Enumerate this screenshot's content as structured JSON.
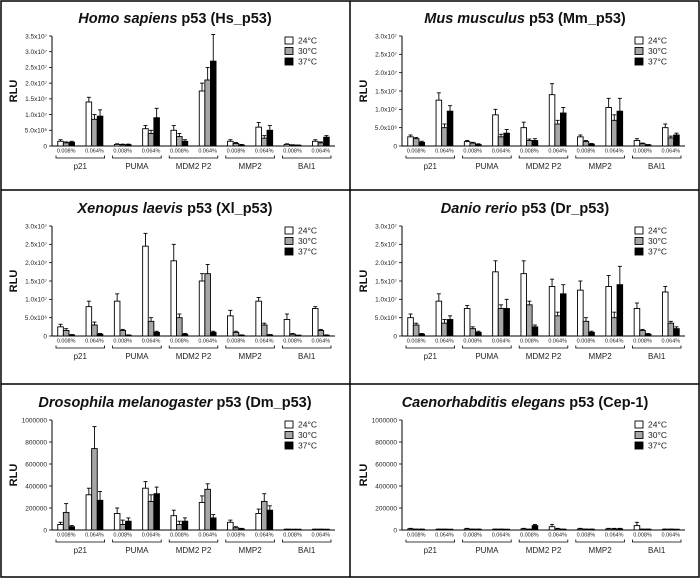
{
  "colors": {
    "24C": "#ffffff",
    "30C": "#a6a6a6",
    "37C": "#000000",
    "stroke": "#000000",
    "border": "#000000"
  },
  "chart_data": [
    {
      "type": "bar",
      "title_species": "Homo sapiens",
      "title_rest": " p53 (Hs_p53)",
      "ylabel": "RLU",
      "yticks": [
        "0",
        "5.0x10⁶",
        "1.0x10⁷",
        "1.5x10⁷",
        "2.0x10⁷",
        "2.5x10⁷",
        "3.0x10⁷",
        "3.5x10⁷"
      ],
      "ylim": [
        0,
        35000000
      ],
      "genes": [
        "p21",
        "PUMA",
        "MDM2 P2",
        "MMP2",
        "BAI1"
      ],
      "concentrations": [
        "0.008%",
        "0.064%"
      ],
      "series": [
        {
          "name": "24°C",
          "values": [
            1500000,
            14000000,
            500000,
            5500000,
            5000000,
            17500000,
            1500000,
            6000000,
            500000,
            1500000
          ],
          "errors": [
            500000,
            1500000,
            200000,
            1000000,
            1500000,
            2500000,
            500000,
            1500000,
            200000,
            500000
          ]
        },
        {
          "name": "30°C",
          "values": [
            1000000,
            8500000,
            400000,
            4000000,
            3000000,
            21000000,
            800000,
            2500000,
            300000,
            1000000
          ],
          "errors": [
            300000,
            1500000,
            200000,
            1000000,
            1000000,
            4000000,
            300000,
            800000,
            100000,
            300000
          ]
        },
        {
          "name": "37°C",
          "values": [
            1200000,
            9500000,
            400000,
            9000000,
            1500000,
            27000000,
            300000,
            5000000,
            200000,
            2800000
          ],
          "errors": [
            300000,
            2000000,
            200000,
            3000000,
            500000,
            8500000,
            200000,
            1500000,
            100000,
            500000
          ]
        }
      ]
    },
    {
      "type": "bar",
      "title_species": "Mus musculus",
      "title_rest": " p53 (Mm_p53)",
      "ylabel": "RLU",
      "yticks": [
        "0",
        "5.0x10⁶",
        "1.0x10⁷",
        "1.5x10⁷",
        "2.0x10⁷",
        "2.5x10⁷",
        "3.0x10⁷"
      ],
      "ylim": [
        0,
        30000000
      ],
      "genes": [
        "p21",
        "PUMA",
        "MDM2 P2",
        "MMP2",
        "BAI1"
      ],
      "concentrations": [
        "0.008%",
        "0.064%"
      ],
      "series": [
        {
          "name": "24°C",
          "values": [
            2500000,
            12500000,
            1200000,
            8500000,
            5000000,
            14000000,
            2500000,
            10500000,
            1500000,
            5000000
          ],
          "errors": [
            500000,
            2000000,
            300000,
            1500000,
            1500000,
            3000000,
            500000,
            2500000,
            500000,
            1000000
          ]
        },
        {
          "name": "30°C",
          "values": [
            2000000,
            5000000,
            800000,
            2500000,
            1500000,
            6000000,
            1200000,
            7000000,
            600000,
            2200000
          ],
          "errors": [
            300000,
            1000000,
            200000,
            700000,
            400000,
            1000000,
            300000,
            1500000,
            200000,
            500000
          ]
        },
        {
          "name": "37°C",
          "values": [
            1000000,
            9500000,
            400000,
            3500000,
            1500000,
            9000000,
            500000,
            9500000,
            300000,
            3000000
          ],
          "errors": [
            300000,
            1500000,
            200000,
            1000000,
            500000,
            1500000,
            200000,
            3500000,
            100000,
            500000
          ]
        }
      ]
    },
    {
      "type": "bar",
      "title_species": "Xenopus laevis",
      "title_rest": " p53 (Xl_p53)",
      "ylabel": "RLU",
      "yticks": [
        "0",
        "5.0x10⁶",
        "1.0x10⁷",
        "1.5x10⁷",
        "2.0x10⁷",
        "2.5x10⁷",
        "3.0x10⁷"
      ],
      "ylim": [
        0,
        30000000
      ],
      "genes": [
        "p21",
        "PUMA",
        "MDM2 P2",
        "MMP2",
        "BAI1"
      ],
      "concentrations": [
        "0.008%",
        "0.064%"
      ],
      "series": [
        {
          "name": "24°C",
          "values": [
            2500000,
            8000000,
            9500000,
            24500000,
            20500000,
            15000000,
            5500000,
            9500000,
            4500000,
            7500000
          ],
          "errors": [
            700000,
            1500000,
            2000000,
            3500000,
            4500000,
            2000000,
            1500000,
            1000000,
            1500000,
            500000
          ]
        },
        {
          "name": "30°C",
          "values": [
            1500000,
            3000000,
            1500000,
            4000000,
            5000000,
            17000000,
            1000000,
            3000000,
            500000,
            1500000
          ],
          "errors": [
            500000,
            800000,
            300000,
            1000000,
            1000000,
            2500000,
            300000,
            500000,
            200000,
            300000
          ]
        },
        {
          "name": "37°C",
          "values": [
            300000,
            500000,
            200000,
            1000000,
            500000,
            1000000,
            200000,
            300000,
            100000,
            200000
          ],
          "errors": [
            100000,
            200000,
            100000,
            300000,
            200000,
            300000,
            100000,
            100000,
            100000,
            100000
          ]
        }
      ]
    },
    {
      "type": "bar",
      "title_species": "Danio rerio",
      "title_rest": " p53 (Dr_p53)",
      "ylabel": "RLU",
      "yticks": [
        "0",
        "5.0x10⁶",
        "1.0x10⁷",
        "1.5x10⁷",
        "2.0x10⁷",
        "2.5x10⁷",
        "3.0x10⁷"
      ],
      "ylim": [
        0,
        30000000
      ],
      "genes": [
        "p21",
        "PUMA",
        "MDM2 P2",
        "MMP2",
        "BAI1"
      ],
      "concentrations": [
        "0.008%",
        "0.064%"
      ],
      "series": [
        {
          "name": "24°C",
          "values": [
            5000000,
            9500000,
            7500000,
            17500000,
            17000000,
            13500000,
            12500000,
            13500000,
            7500000,
            12000000
          ],
          "errors": [
            1000000,
            2000000,
            800000,
            3000000,
            3500000,
            2000000,
            2500000,
            3000000,
            1500000,
            1500000
          ]
        },
        {
          "name": "30°C",
          "values": [
            3000000,
            3500000,
            2000000,
            7500000,
            8500000,
            5500000,
            4000000,
            5000000,
            1500000,
            3500000
          ],
          "errors": [
            500000,
            1000000,
            500000,
            1000000,
            1000000,
            1000000,
            1000000,
            1500000,
            300000,
            500000
          ]
        },
        {
          "name": "37°C",
          "values": [
            500000,
            4500000,
            1000000,
            7500000,
            2500000,
            11500000,
            1000000,
            14000000,
            500000,
            2000000
          ],
          "errors": [
            200000,
            1000000,
            300000,
            2500000,
            500000,
            2500000,
            300000,
            5000000,
            200000,
            500000
          ]
        }
      ]
    },
    {
      "type": "bar",
      "title_species": "Drosophila melanogaster",
      "title_rest": " p53 (Dm_p53)",
      "ylabel": "RLU",
      "yticks": [
        "0",
        "200000",
        "400000",
        "600000",
        "800000",
        "1000000"
      ],
      "ylim": [
        0,
        1000000
      ],
      "genes": [
        "p21",
        "PUMA",
        "MDM2 P2",
        "MMP2",
        "BAI1"
      ],
      "concentrations": [
        "0.008%",
        "0.064%"
      ],
      "series": [
        {
          "name": "24°C",
          "values": [
            50000,
            320000,
            150000,
            380000,
            130000,
            250000,
            70000,
            150000,
            5000,
            5000
          ],
          "errors": [
            20000,
            60000,
            50000,
            60000,
            50000,
            60000,
            20000,
            40000,
            2000,
            2000
          ]
        },
        {
          "name": "30°C",
          "values": [
            160000,
            740000,
            50000,
            260000,
            50000,
            370000,
            20000,
            260000,
            3000,
            5000
          ],
          "errors": [
            80000,
            200000,
            40000,
            60000,
            30000,
            50000,
            10000,
            70000,
            2000,
            2000
          ]
        },
        {
          "name": "37°C",
          "values": [
            30000,
            270000,
            80000,
            330000,
            80000,
            110000,
            10000,
            180000,
            2000,
            3000
          ],
          "errors": [
            10000,
            80000,
            30000,
            60000,
            30000,
            30000,
            5000,
            40000,
            1000,
            1000
          ]
        }
      ]
    },
    {
      "type": "bar",
      "title_species": "Caenorhabditis elegans",
      "title_rest": " p53 (Cep-1)",
      "ylabel": "RLU",
      "yticks": [
        "0",
        "200000",
        "400000",
        "600000",
        "800000",
        "1000000"
      ],
      "ylim": [
        0,
        1000000
      ],
      "genes": [
        "p21",
        "PUMA",
        "MDM2 P2",
        "MMP2",
        "BAI1"
      ],
      "concentrations": [
        "0.008%",
        "0.064%"
      ],
      "series": [
        {
          "name": "24°C",
          "values": [
            10000,
            5000,
            10000,
            5000,
            10000,
            30000,
            10000,
            10000,
            40000,
            5000
          ],
          "errors": [
            5000,
            3000,
            5000,
            3000,
            5000,
            20000,
            5000,
            5000,
            30000,
            3000
          ]
        },
        {
          "name": "30°C",
          "values": [
            5000,
            5000,
            5000,
            5000,
            5000,
            10000,
            5000,
            10000,
            5000,
            5000
          ],
          "errors": [
            3000,
            3000,
            3000,
            3000,
            3000,
            5000,
            3000,
            5000,
            3000,
            3000
          ]
        },
        {
          "name": "37°C",
          "values": [
            5000,
            3000,
            5000,
            3000,
            40000,
            5000,
            5000,
            10000,
            5000,
            3000
          ],
          "errors": [
            3000,
            2000,
            3000,
            2000,
            10000,
            3000,
            3000,
            5000,
            3000,
            2000
          ]
        }
      ]
    }
  ]
}
